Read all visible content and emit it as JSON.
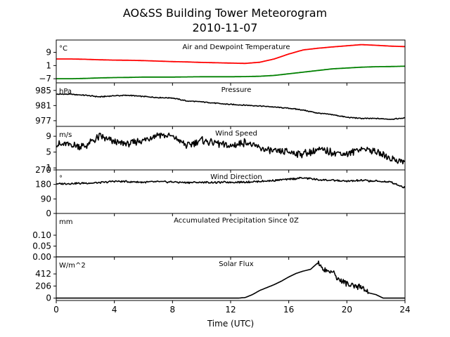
{
  "figure": {
    "title": "AO&SS Building Tower Meteorogram",
    "subtitle": "2010-11-07"
  },
  "chart_data": [
    {
      "type": "line",
      "title": "Air and Dewpoint Temperature",
      "ylabel": "°C",
      "xlim": [
        0,
        24
      ],
      "ylim": [
        -9.5,
        16.5
      ],
      "yticks": [
        -7,
        1,
        9
      ],
      "ytick_labels": [
        "−7",
        "1",
        "9"
      ],
      "series": [
        {
          "color": "#ff0000",
          "x": [
            0,
            1,
            2,
            3,
            4,
            5,
            6,
            7,
            8,
            9,
            10,
            11,
            12,
            13,
            14,
            15,
            16,
            17,
            18,
            19,
            20,
            21,
            22,
            23,
            24
          ],
          "values": [
            5.0,
            5.0,
            4.8,
            4.5,
            4.3,
            4.2,
            4.0,
            3.7,
            3.4,
            3.2,
            2.9,
            2.7,
            2.5,
            2.3,
            3.0,
            5.0,
            8.0,
            10.5,
            11.5,
            12.3,
            13.0,
            13.7,
            13.3,
            12.8,
            12.5
          ]
        },
        {
          "color": "#008000",
          "x": [
            0,
            1,
            2,
            3,
            4,
            5,
            6,
            7,
            8,
            9,
            10,
            11,
            12,
            13,
            14,
            15,
            16,
            17,
            18,
            19,
            20,
            21,
            22,
            23,
            24
          ],
          "values": [
            -7.0,
            -7.0,
            -6.8,
            -6.5,
            -6.3,
            -6.2,
            -6.0,
            -6.0,
            -6.0,
            -5.9,
            -5.8,
            -5.8,
            -5.8,
            -5.7,
            -5.5,
            -5.0,
            -4.0,
            -3.0,
            -2.0,
            -1.0,
            -0.5,
            0.0,
            0.3,
            0.4,
            0.6
          ]
        }
      ]
    },
    {
      "type": "line",
      "title": "Pressure",
      "ylabel": "hPa",
      "xlim": [
        0,
        24
      ],
      "ylim": [
        975.5,
        987
      ],
      "yticks": [
        977,
        981,
        985
      ],
      "ytick_labels": [
        "977",
        "981",
        "985"
      ],
      "series": [
        {
          "color": "#000000",
          "x": [
            0,
            1,
            2,
            3,
            4,
            5,
            6,
            7,
            8,
            9,
            10,
            11,
            12,
            13,
            14,
            15,
            16,
            17,
            18,
            19,
            20,
            21,
            22,
            23,
            24
          ],
          "values": [
            984.0,
            984.0,
            983.7,
            983.3,
            983.6,
            983.7,
            983.4,
            983.1,
            983.0,
            982.2,
            982.0,
            981.6,
            981.3,
            981.1,
            980.9,
            980.6,
            980.3,
            979.8,
            979.0,
            978.6,
            977.9,
            977.6,
            977.6,
            977.4,
            977.7
          ]
        }
      ]
    },
    {
      "type": "line",
      "title": "Wind Speed",
      "ylabel": "m/s",
      "xlim": [
        0,
        24
      ],
      "ylim": [
        0.5,
        11.5
      ],
      "yticks": [
        1,
        5,
        9
      ],
      "ytick_labels": [
        "1",
        "5",
        "9"
      ],
      "series": [
        {
          "color": "#000000",
          "x": [
            0,
            1,
            2,
            3,
            4,
            5,
            6,
            7,
            8,
            9,
            10,
            11,
            12,
            13,
            14,
            15,
            16,
            17,
            18,
            19,
            20,
            21,
            22,
            23,
            24
          ],
          "values": [
            7.0,
            6.8,
            6.5,
            9.0,
            7.5,
            7.0,
            8.0,
            9.5,
            9.0,
            6.5,
            8.0,
            7.2,
            6.5,
            7.5,
            6.0,
            5.0,
            5.0,
            4.5,
            5.5,
            5.0,
            4.5,
            6.0,
            5.0,
            3.5,
            2.5
          ]
        }
      ]
    },
    {
      "type": "line",
      "title": "Wind Direction",
      "ylabel": "°",
      "xlim": [
        0,
        24
      ],
      "ylim": [
        0,
        270
      ],
      "yticks": [
        0,
        90,
        180,
        270
      ],
      "ytick_labels": [
        "0",
        "90",
        "180",
        "270"
      ],
      "series": [
        {
          "color": "#000000",
          "x": [
            0,
            1,
            2,
            3,
            4,
            5,
            6,
            7,
            8,
            9,
            10,
            11,
            12,
            13,
            14,
            15,
            16,
            17,
            18,
            19,
            20,
            21,
            22,
            23,
            24
          ],
          "values": [
            183,
            185,
            188,
            190,
            200,
            197,
            194,
            197,
            195,
            192,
            193,
            192,
            193,
            194,
            198,
            205,
            212,
            220,
            210,
            205,
            200,
            205,
            200,
            195,
            160
          ]
        }
      ]
    },
    {
      "type": "line",
      "title": "Accumulated Precipitation Since 0Z",
      "ylabel": "mm",
      "xlim": [
        0,
        24
      ],
      "ylim": [
        0,
        0.2
      ],
      "yticks": [
        0.0,
        0.05,
        0.1
      ],
      "ytick_labels": [
        "0.00",
        "0.05",
        "0.10"
      ],
      "series": [
        {
          "color": "#000000",
          "x": [
            0,
            24
          ],
          "values": [
            0.0,
            0.0
          ]
        }
      ]
    },
    {
      "type": "line",
      "title": "Solar Flux",
      "ylabel": "W/m^2",
      "xlim": [
        0,
        24
      ],
      "ylim": [
        -40,
        700
      ],
      "yticks": [
        0,
        206,
        412
      ],
      "ytick_labels": [
        "0",
        "206",
        "412"
      ],
      "xticks": [
        0,
        4,
        8,
        12,
        16,
        20,
        24
      ],
      "xlabel": "Time (UTC)",
      "series": [
        {
          "color": "#000000",
          "x": [
            0,
            12.5,
            13,
            13.5,
            14,
            14.5,
            15,
            15.5,
            16,
            16.5,
            17,
            17.5,
            18,
            18.5,
            19,
            19.5,
            20,
            20.5,
            21,
            21.5,
            22,
            22.5,
            23,
            24
          ],
          "values": [
            0,
            0,
            10,
            60,
            130,
            180,
            230,
            290,
            360,
            420,
            460,
            490,
            600,
            480,
            450,
            300,
            250,
            180,
            200,
            90,
            60,
            0,
            0,
            0
          ]
        }
      ]
    }
  ]
}
